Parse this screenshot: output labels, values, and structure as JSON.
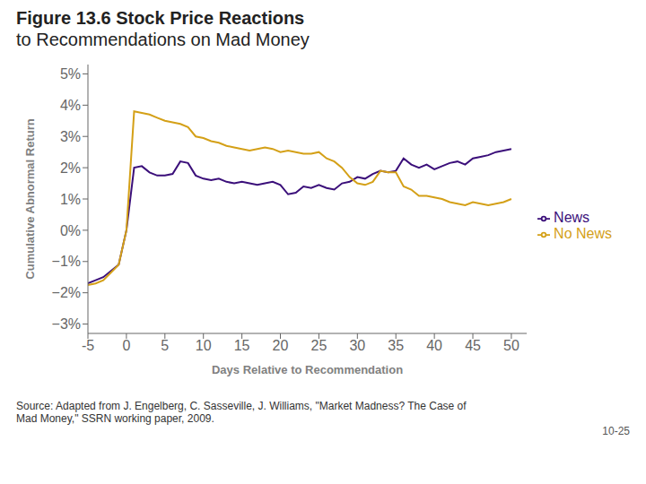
{
  "chart_data": {
    "type": "line",
    "title": "Figure 13.6 Stock Price Reactions",
    "subtitle": "to Recommendations on Mad Money",
    "x_label": "Days Relative to Recommendation",
    "y_label": "Cumulative Abnormal Return",
    "annotations": [
      "Source: Adapted from J. Engelberg, C. Sasseville, J. Williams, \"Market Madness? The Case of\nMad Money,\" SSRN working paper, 2009.",
      "10-25"
    ],
    "x": [
      -5,
      -4,
      -3,
      -2,
      -1,
      0,
      1,
      2,
      3,
      4,
      5,
      6,
      7,
      8,
      9,
      10,
      11,
      12,
      13,
      14,
      15,
      16,
      17,
      18,
      19,
      20,
      21,
      22,
      23,
      24,
      25,
      26,
      27,
      28,
      29,
      30,
      31,
      32,
      33,
      34,
      35,
      36,
      37,
      38,
      39,
      40,
      41,
      42,
      43,
      44,
      45,
      46,
      47,
      48,
      49,
      50
    ],
    "series": [
      {
        "name": "News",
        "color": "#3b0f7a",
        "values": [
          -1.7,
          -1.6,
          -1.5,
          -1.3,
          -1.1,
          0.0,
          2.0,
          2.05,
          1.85,
          1.75,
          1.75,
          1.8,
          2.2,
          2.15,
          1.75,
          1.65,
          1.6,
          1.65,
          1.55,
          1.5,
          1.55,
          1.5,
          1.45,
          1.5,
          1.55,
          1.45,
          1.15,
          1.2,
          1.4,
          1.35,
          1.45,
          1.35,
          1.3,
          1.5,
          1.55,
          1.7,
          1.65,
          1.8,
          1.9,
          1.85,
          1.9,
          2.3,
          2.1,
          2.0,
          2.1,
          1.95,
          2.05,
          2.15,
          2.2,
          2.1,
          2.3,
          2.35,
          2.4,
          2.5,
          2.55,
          2.6
        ]
      },
      {
        "name": "No News",
        "color": "#d4a017",
        "values": [
          -1.75,
          -1.7,
          -1.6,
          -1.35,
          -1.1,
          0.0,
          3.8,
          3.75,
          3.7,
          3.6,
          3.5,
          3.45,
          3.4,
          3.3,
          3.0,
          2.95,
          2.85,
          2.8,
          2.7,
          2.65,
          2.6,
          2.55,
          2.6,
          2.65,
          2.6,
          2.5,
          2.55,
          2.5,
          2.45,
          2.45,
          2.5,
          2.3,
          2.2,
          2.0,
          1.7,
          1.5,
          1.45,
          1.55,
          1.9,
          1.85,
          1.85,
          1.4,
          1.3,
          1.1,
          1.1,
          1.05,
          1.0,
          0.9,
          0.85,
          0.8,
          0.9,
          0.85,
          0.8,
          0.85,
          0.9,
          1.0
        ]
      }
    ],
    "xlim": [
      -5,
      52
    ],
    "ylim": [
      -3.3,
      5.3
    ],
    "xticks": [
      -5,
      0,
      5,
      10,
      15,
      20,
      25,
      30,
      35,
      40,
      45,
      50
    ],
    "yticks": [
      {
        "value": -3,
        "label": "−3%"
      },
      {
        "value": -2,
        "label": "−2%"
      },
      {
        "value": -1,
        "label": "−1%"
      },
      {
        "value": 0,
        "label": "0%"
      },
      {
        "value": 1,
        "label": "1%"
      },
      {
        "value": 2,
        "label": "2%"
      },
      {
        "value": 3,
        "label": "3%"
      },
      {
        "value": 4,
        "label": "4%"
      },
      {
        "value": 5,
        "label": "5%"
      }
    ],
    "grid": false,
    "legend": "right"
  }
}
